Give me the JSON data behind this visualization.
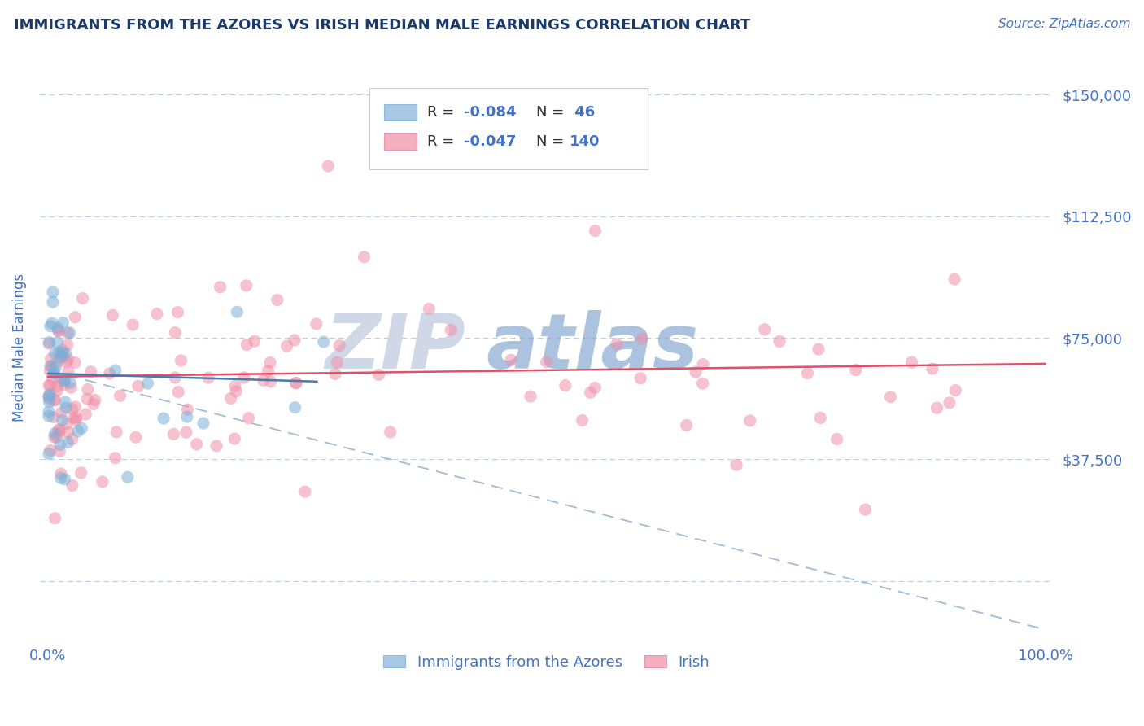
{
  "title": "IMMIGRANTS FROM THE AZORES VS IRISH MEDIAN MALE EARNINGS CORRELATION CHART",
  "source": "Source: ZipAtlas.com",
  "ylabel": "Median Male Earnings",
  "yticks": [
    0,
    37500,
    75000,
    112500,
    150000
  ],
  "ytick_labels": [
    "",
    "$37,500",
    "$75,000",
    "$112,500",
    "$150,000"
  ],
  "ymax": 162000,
  "ymin": -18000,
  "xmin": -0.008,
  "xmax": 1.008,
  "azores_dot_color": "#7ab0d8",
  "irish_dot_color": "#f090a8",
  "azores_legend_color": "#a8c8e8",
  "irish_legend_color": "#f4b0be",
  "trend_azores_color": "#4a78b0",
  "trend_irish_color": "#e0506a",
  "dashed_line_color": "#a0bcd8",
  "title_color": "#1a3a6b",
  "value_color": "#4472c4",
  "background_color": "#ffffff",
  "grid_color": "#c0cce0",
  "legend_label_azores": "Immigrants from the Azores",
  "legend_label_irish": "Irish",
  "watermark_zip_color": "#d0d8e8",
  "watermark_atlas_color": "#88aad0"
}
